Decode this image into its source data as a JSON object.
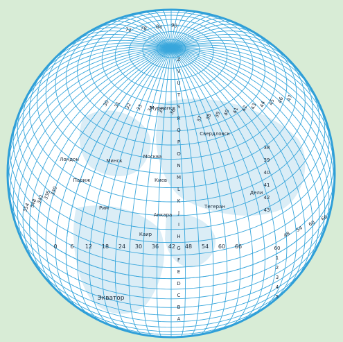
{
  "colors": {
    "background": "#d8ecd6",
    "globe_fill": "#ffffff",
    "grid_line": "#39a7dc",
    "outline": "#2f9fd8",
    "land_tint": "#cfe7f3",
    "label_text": "#1a2a3a"
  },
  "grid": {
    "lat_step_deg": 5,
    "lon_step_deg": 5,
    "projection": "orthographic",
    "view_lat_deg": 40,
    "view_lon_deg": 40
  },
  "longitude_numbers_equator": [
    "0",
    "6",
    "12",
    "18",
    "24",
    "30",
    "36",
    "42",
    "48",
    "54",
    "60",
    "66"
  ],
  "longitude_numbers_diagonal": [
    "354",
    "348",
    "342",
    "336",
    "330"
  ],
  "longitude_numbers_right": [
    "48",
    "54",
    "60",
    "66"
  ],
  "longitude_numbers_top": [
    "72",
    "78",
    "84",
    "90"
  ],
  "letter_scale": [
    "A",
    "B",
    "C",
    "D",
    "E",
    "F",
    "G",
    "H",
    "I",
    "J",
    "K",
    "L",
    "M",
    "N",
    "O",
    "P",
    "Q",
    "R",
    "S",
    "T",
    "U",
    "V",
    "Z"
  ],
  "zone_numbers_top": [
    "30",
    "31",
    "32",
    "33",
    "34",
    "35",
    "36"
  ],
  "zone_numbers_right": [
    "37",
    "38",
    "39",
    "40",
    "41",
    "42",
    "43",
    "44",
    "45",
    "46",
    "47"
  ],
  "zone_numbers_lower": [
    "38",
    "39",
    "40",
    "41",
    "42",
    "43"
  ],
  "zone_numbers_extra": [
    "60",
    "1",
    "2",
    "3",
    "4",
    "5"
  ],
  "cities": [
    {
      "name": "Москва"
    },
    {
      "name": "Киев"
    },
    {
      "name": "Минск"
    },
    {
      "name": "Лондон"
    },
    {
      "name": "Париж"
    },
    {
      "name": "Рим"
    },
    {
      "name": "Каир"
    },
    {
      "name": "Анкара"
    },
    {
      "name": "Тегеран"
    },
    {
      "name": "Дели"
    },
    {
      "name": "Мурманск"
    },
    {
      "name": "Свердловск"
    }
  ],
  "equator_label": "Экватор"
}
